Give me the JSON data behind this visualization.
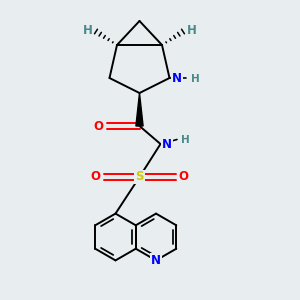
{
  "bg_color": "#e8eef0",
  "bond_color": "#000000",
  "atom_colors": {
    "N": "#0000ff",
    "O": "#ff0000",
    "S": "#cccc00",
    "H_stereo": "#4a8a8a",
    "C": "#000000"
  },
  "figsize": [
    3.0,
    3.0
  ],
  "dpi": 100,
  "xlim": [
    0,
    10
  ],
  "ylim": [
    0,
    10
  ]
}
